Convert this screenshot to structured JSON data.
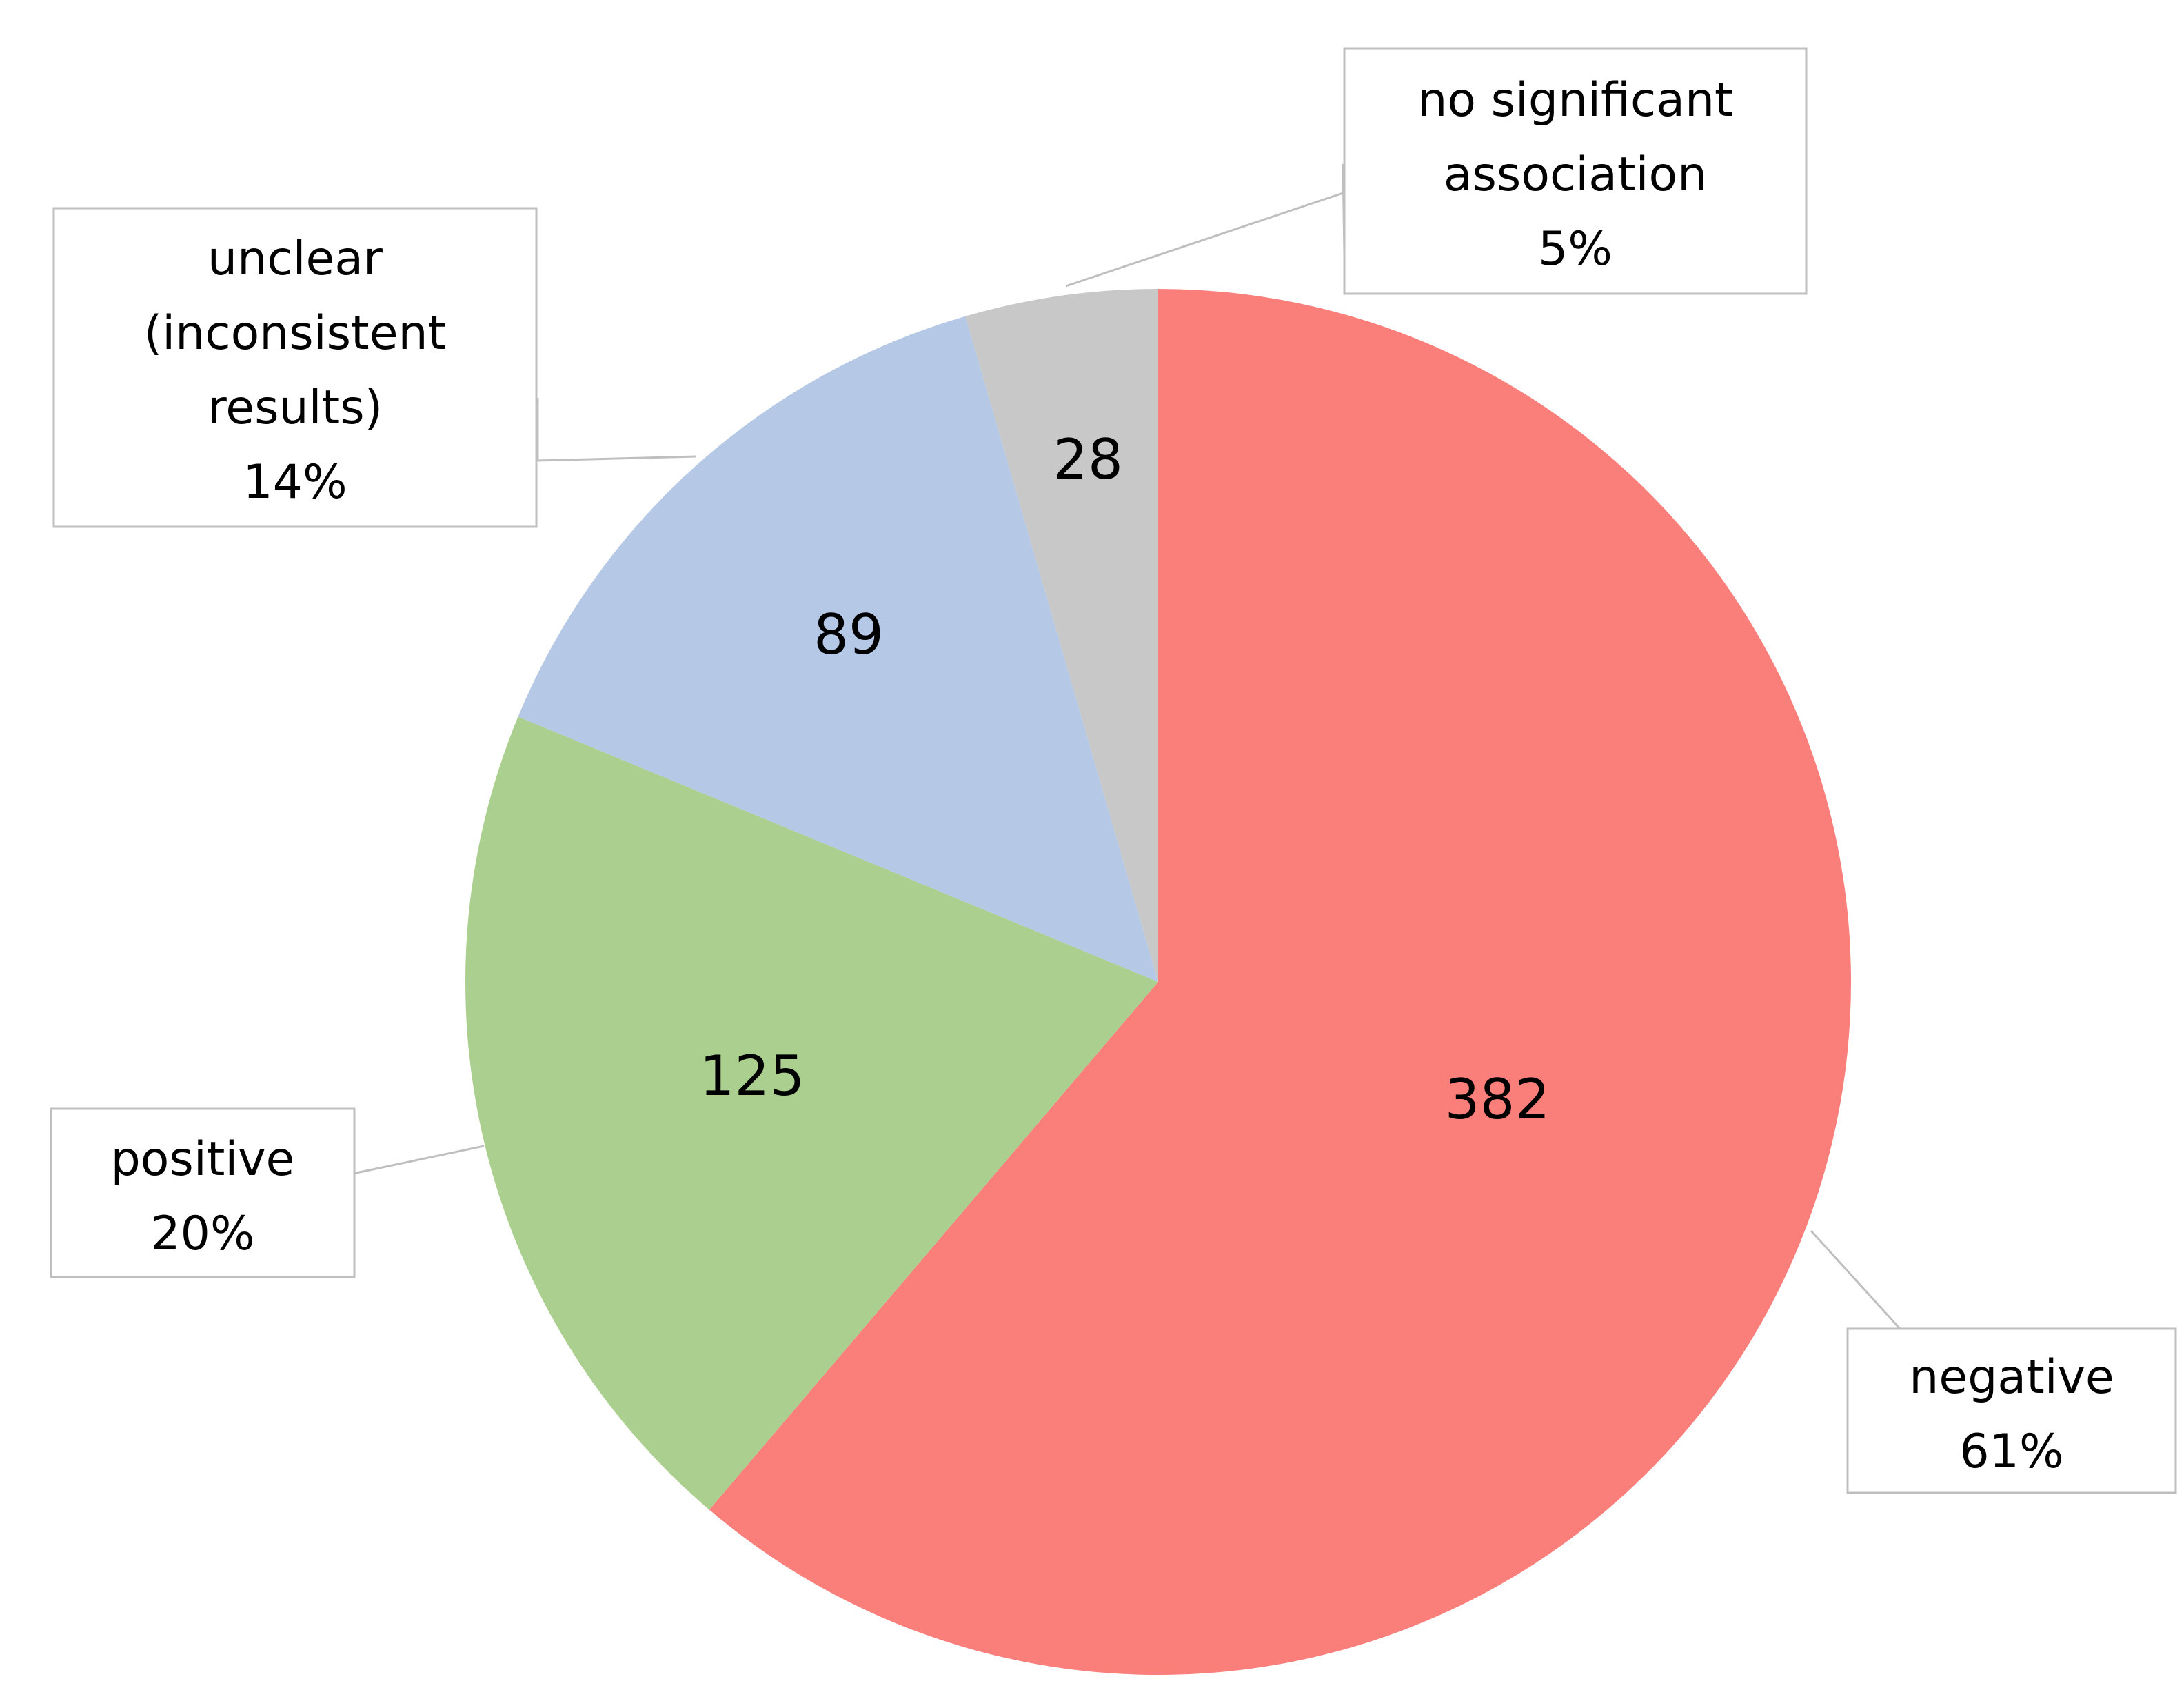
{
  "chart_data": {
    "type": "pie",
    "start_angle_deg": 0,
    "direction": "clockwise",
    "slices": [
      {
        "label_lines": [
          "negative"
        ],
        "percent_label": "61%",
        "value": 382,
        "color": "#fa7f7b"
      },
      {
        "label_lines": [
          "positive"
        ],
        "percent_label": "20%",
        "value": 125,
        "color": "#abcf8f"
      },
      {
        "label_lines": [
          "unclear",
          "(inconsistent",
          "results)"
        ],
        "percent_label": "14%",
        "value": 89,
        "color": "#b5c8e6"
      },
      {
        "label_lines": [
          "no significant",
          "association"
        ],
        "percent_label": "5%",
        "value": 28,
        "color": "#c8c8c8"
      }
    ]
  }
}
